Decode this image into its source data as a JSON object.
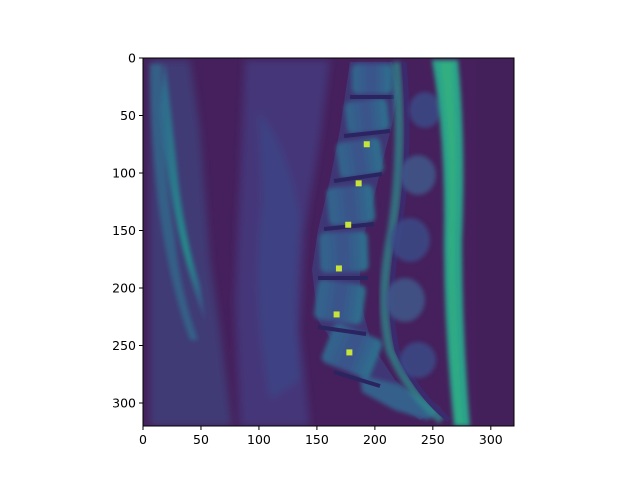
{
  "figure": {
    "axes": {
      "x": {
        "ticks": [
          "0",
          "50",
          "100",
          "150",
          "200",
          "250",
          "300"
        ],
        "range": [
          0,
          320
        ]
      },
      "y": {
        "ticks": [
          "0",
          "50",
          "100",
          "150",
          "200",
          "250",
          "300"
        ],
        "range": [
          0,
          320
        ],
        "direction": "top-to-bottom"
      }
    },
    "image": {
      "description": "sagittal lumbar spine MRI, viridis colormap",
      "colormap": "viridis",
      "background_color": "#45205c",
      "bright_color": "#2ba38a",
      "marker_color": "#c8e43a"
    },
    "markers": [
      {
        "x": 193,
        "y": 75
      },
      {
        "x": 186,
        "y": 109
      },
      {
        "x": 177,
        "y": 145
      },
      {
        "x": 169,
        "y": 183
      },
      {
        "x": 167,
        "y": 223
      },
      {
        "x": 178,
        "y": 256
      }
    ]
  }
}
